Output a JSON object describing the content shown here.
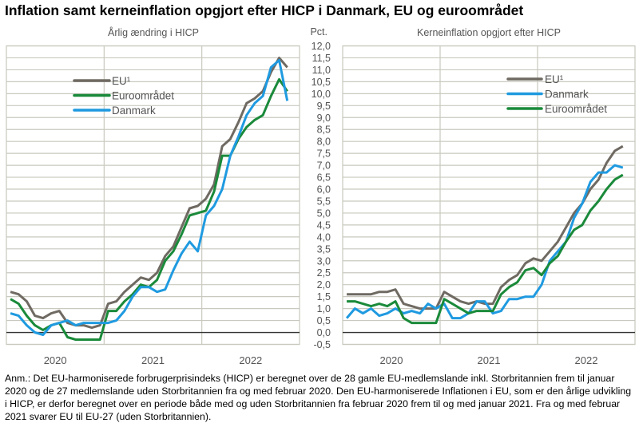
{
  "title": "Inflation samt kerneinflation opgjort efter HICP i Danmark, EU og euroområdet",
  "unit_label": "Pct.",
  "note": "Anm.: Det EU-harmoniserede forbrugerprisindeks (HICP) er beregnet over de 28 gamle EU-medlemslande inkl. Storbritannien frem til januar 2020 og de 27 medlemslande uden Storbritannien fra og med februar 2020. Den EU-harmoniserede Inflationen i EU, som er den årlige udvikling i HICP, er derfor beregnet over en periode både med og uden Storbritannien fra februar 2020 frem til og med januar 2021. Fra og med februar 2021 svarer EU til EU-27 (uden Storbritannien).",
  "colors": {
    "EU": "#6f6a62",
    "Euroområdet": "#1a8a3a",
    "Danmark": "#1f9ae0",
    "grid": "#c9c9bf",
    "zero": "#333333"
  },
  "chart_data": [
    {
      "type": "line",
      "title": "Årlig ændring i HICP",
      "ylabel": "Pct.",
      "ylim": [
        -0.5,
        12.0
      ],
      "y_ticks": [
        "-0,5",
        "0,0",
        "0,5",
        "1,0",
        "1,5",
        "2,0",
        "2,5",
        "3,0",
        "3,5",
        "4,0",
        "4,5",
        "5,0",
        "5,5",
        "6,0",
        "6,5",
        "7,0",
        "7,5",
        "8,0",
        "8,5",
        "9,0",
        "9,5",
        "10,0",
        "10,5",
        "11,0",
        "11,5",
        "12,0"
      ],
      "x_tick_labels": [
        "2020",
        "2021",
        "2022"
      ],
      "x_period": "monthly, Jan 2020 - Nov 2022",
      "grid": true,
      "legend": "upper-left",
      "series": [
        {
          "name": "EU¹",
          "key": "EU",
          "values": [
            1.7,
            1.6,
            1.3,
            0.7,
            0.6,
            0.8,
            0.9,
            0.4,
            0.3,
            0.3,
            0.2,
            0.3,
            1.2,
            1.3,
            1.7,
            2.0,
            2.3,
            2.2,
            2.5,
            3.2,
            3.6,
            4.4,
            5.2,
            5.3,
            5.6,
            6.2,
            7.8,
            8.1,
            8.8,
            9.6,
            9.8,
            10.1,
            10.9,
            11.5,
            11.1
          ]
        },
        {
          "name": "Euroområdet",
          "key": "Euroområdet",
          "values": [
            1.4,
            1.2,
            0.7,
            0.3,
            0.1,
            0.3,
            0.4,
            -0.2,
            -0.3,
            -0.3,
            -0.3,
            -0.3,
            0.9,
            0.9,
            1.3,
            1.6,
            2.0,
            1.9,
            2.2,
            3.0,
            3.4,
            4.1,
            4.9,
            5.0,
            5.1,
            5.9,
            7.4,
            7.4,
            8.1,
            8.6,
            8.9,
            9.1,
            9.9,
            10.6,
            10.1
          ]
        },
        {
          "name": "Danmark",
          "key": "Danmark",
          "values": [
            0.8,
            0.7,
            0.3,
            0.0,
            -0.1,
            0.3,
            0.4,
            0.5,
            0.3,
            0.4,
            0.4,
            0.4,
            0.4,
            0.5,
            0.9,
            1.5,
            1.9,
            1.9,
            1.7,
            1.8,
            2.6,
            3.3,
            3.8,
            3.4,
            4.9,
            5.3,
            6.0,
            7.4,
            8.2,
            9.1,
            9.6,
            9.9,
            11.1,
            11.4,
            9.7
          ]
        }
      ]
    },
    {
      "type": "line",
      "title": "Kerneinflation opgjort efter HICP",
      "ylabel": "Pct.",
      "ylim": [
        -0.5,
        12.0
      ],
      "y_ticks": [
        "-0,5",
        "0,0",
        "0,5",
        "1,0",
        "1,5",
        "2,0",
        "2,5",
        "3,0",
        "3,5",
        "4,0",
        "4,5",
        "5,0",
        "5,5",
        "6,0",
        "6,5",
        "7,0",
        "7,5",
        "8,0",
        "8,5",
        "9,0",
        "9,5",
        "10,0",
        "10,5",
        "11,0",
        "11,5",
        "12,0"
      ],
      "x_tick_labels": [
        "2020",
        "2021",
        "2022"
      ],
      "x_period": "monthly, Jan 2020 - Nov 2022",
      "grid": true,
      "legend": "upper-right",
      "series": [
        {
          "name": "EU¹",
          "key": "EU",
          "values": [
            1.6,
            1.6,
            1.6,
            1.6,
            1.7,
            1.7,
            1.8,
            1.2,
            1.1,
            1.0,
            1.0,
            1.0,
            1.7,
            1.5,
            1.3,
            1.2,
            1.3,
            1.2,
            1.2,
            1.9,
            2.2,
            2.4,
            2.9,
            3.1,
            3.0,
            3.4,
            3.8,
            4.4,
            5.0,
            5.4,
            6.0,
            6.4,
            7.1,
            7.6,
            7.8
          ]
        },
        {
          "name": "Danmark",
          "key": "Danmark",
          "values": [
            0.6,
            1.0,
            0.8,
            1.0,
            0.7,
            0.8,
            1.0,
            0.8,
            0.9,
            0.8,
            1.2,
            1.0,
            1.2,
            0.6,
            0.6,
            0.8,
            1.3,
            1.3,
            0.8,
            0.9,
            1.4,
            1.4,
            1.5,
            1.5,
            2.0,
            3.0,
            3.4,
            3.8,
            4.8,
            5.4,
            6.3,
            6.7,
            6.7,
            7.0,
            6.9
          ]
        },
        {
          "name": "Euroområdet",
          "key": "Euroområdet",
          "values": [
            1.3,
            1.3,
            1.2,
            1.1,
            1.2,
            1.1,
            1.3,
            0.6,
            0.4,
            0.4,
            0.4,
            0.4,
            1.4,
            1.2,
            1.0,
            0.8,
            0.9,
            0.9,
            0.9,
            1.6,
            1.9,
            2.1,
            2.6,
            2.7,
            2.4,
            2.9,
            3.2,
            3.8,
            4.3,
            4.5,
            5.1,
            5.5,
            6.0,
            6.4,
            6.6
          ]
        }
      ]
    }
  ]
}
